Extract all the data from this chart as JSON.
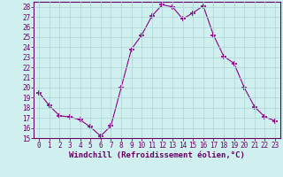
{
  "x": [
    0,
    1,
    2,
    3,
    4,
    5,
    6,
    7,
    8,
    9,
    10,
    11,
    12,
    13,
    14,
    15,
    16,
    17,
    18,
    19,
    20,
    21,
    22,
    23
  ],
  "y": [
    19.5,
    18.2,
    17.2,
    17.1,
    16.8,
    16.1,
    15.2,
    16.2,
    20.0,
    23.8,
    25.2,
    27.1,
    28.2,
    28.0,
    26.8,
    27.4,
    28.1,
    25.2,
    23.1,
    22.4,
    20.0,
    18.1,
    17.1,
    16.7
  ],
  "line_color": "#880088",
  "marker": "+",
  "marker_size": 4,
  "bg_color": "#d0f0f0",
  "grid_color": "#b0d8d8",
  "xlabel": "Windchill (Refroidissement éolien,°C)",
  "ylim": [
    15,
    28.5
  ],
  "xlim": [
    -0.5,
    23.5
  ],
  "yticks": [
    15,
    16,
    17,
    18,
    19,
    20,
    21,
    22,
    23,
    24,
    25,
    26,
    27,
    28
  ],
  "xticks": [
    0,
    1,
    2,
    3,
    4,
    5,
    6,
    7,
    8,
    9,
    10,
    11,
    12,
    13,
    14,
    15,
    16,
    17,
    18,
    19,
    20,
    21,
    22,
    23
  ],
  "tick_label_fontsize": 5.5,
  "xlabel_fontsize": 6.5,
  "line_color_dark": "#660066",
  "spine_color": "#660066"
}
